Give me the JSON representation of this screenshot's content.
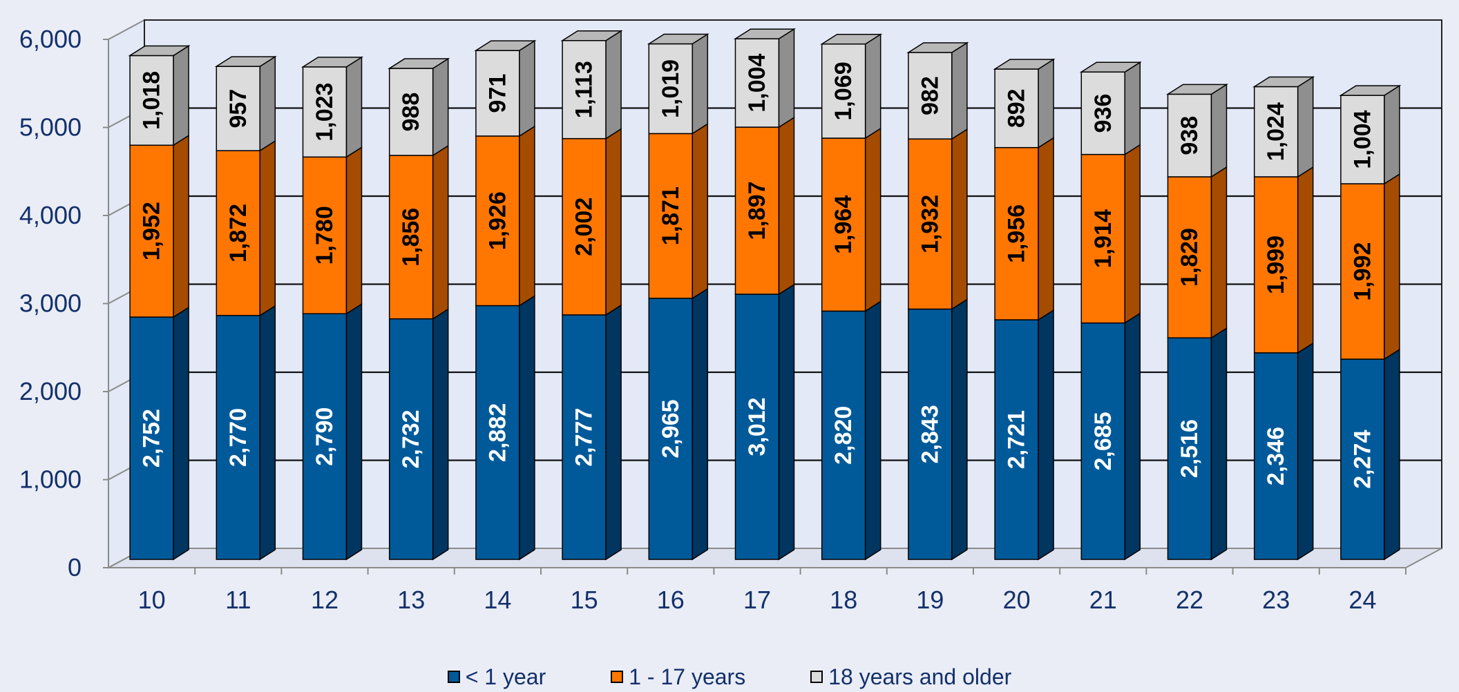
{
  "chart_data": {
    "type": "bar",
    "stacked": true,
    "categories": [
      "10",
      "11",
      "12",
      "13",
      "14",
      "15",
      "16",
      "17",
      "18",
      "19",
      "20",
      "21",
      "22",
      "23",
      "24"
    ],
    "series": [
      {
        "name": "< 1 year",
        "color": "#005a9a",
        "side_color": "#003660",
        "label_color": "#ffffff",
        "values": [
          2752,
          2770,
          2790,
          2732,
          2882,
          2777,
          2965,
          3012,
          2820,
          2843,
          2721,
          2685,
          2516,
          2346,
          2274
        ],
        "labels": [
          "2,752",
          "2,770",
          "2,790",
          "2,732",
          "2,882",
          "2,777",
          "2,965",
          "3,012",
          "2,820",
          "2,843",
          "2,721",
          "2,685",
          "2,516",
          "2,346",
          "2,274"
        ]
      },
      {
        "name": "1 - 17 years",
        "color": "#ff7700",
        "side_color": "#a54c00",
        "label_color": "#000000",
        "values": [
          1952,
          1872,
          1780,
          1856,
          1926,
          2002,
          1871,
          1897,
          1964,
          1932,
          1956,
          1914,
          1829,
          1999,
          1992
        ],
        "labels": [
          "1,952",
          "1,872",
          "1,780",
          "1,856",
          "1,926",
          "2,002",
          "1,871",
          "1,897",
          "1,964",
          "1,932",
          "1,956",
          "1,914",
          "1,829",
          "1,999",
          "1,992"
        ]
      },
      {
        "name": "18 years and older",
        "color": "#dcdcdc",
        "side_color": "#8f8f8f",
        "label_color": "#000000",
        "values": [
          1018,
          957,
          1023,
          988,
          971,
          1113,
          1019,
          1004,
          1069,
          982,
          892,
          936,
          938,
          1024,
          1004
        ],
        "labels": [
          "1,018",
          "957",
          "1,023",
          "988",
          "971",
          "1,113",
          "1,019",
          "1,004",
          "1,069",
          "982",
          "892",
          "936",
          "938",
          "1,024",
          "1,004"
        ]
      }
    ],
    "y_ticks": [
      "0",
      "1,000",
      "2,000",
      "3,000",
      "4,000",
      "5,000",
      "6,000"
    ],
    "ylim": [
      0,
      6000
    ],
    "grid": true,
    "legend_position": "bottom",
    "three_d": true,
    "plot_background": "#e3e9f7",
    "page_background": "#eaedf6",
    "text_color": "#13306a"
  }
}
